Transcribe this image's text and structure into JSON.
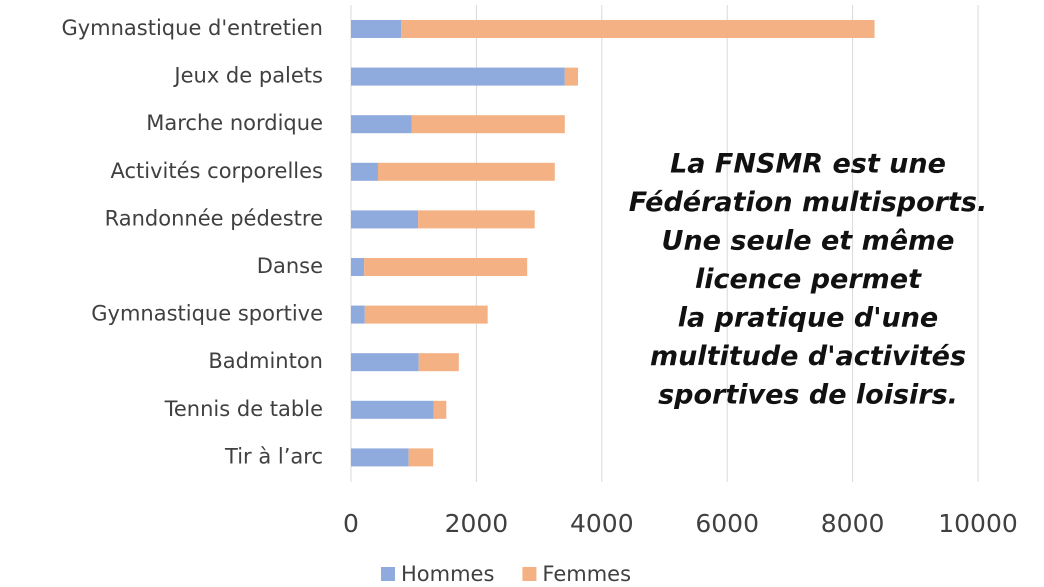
{
  "chart_data": {
    "type": "stacked-barh",
    "categories": [
      "Gymnastique d'entretien",
      "Jeux de palets",
      "Marche nordique",
      "Activités corporelles",
      "Randonnée pédestre",
      "Danse",
      "Gymnastique sportive",
      "Badminton",
      "Tennis de table",
      "Tir à l’arc"
    ],
    "series": [
      {
        "name": "Hommes",
        "color": "#8faadc",
        "values": [
          800,
          3410,
          970,
          430,
          1070,
          210,
          220,
          1080,
          1320,
          920
        ]
      },
      {
        "name": "Femmes",
        "color": "#f4b183",
        "values": [
          7550,
          210,
          2440,
          2820,
          1860,
          2600,
          1960,
          640,
          200,
          390
        ]
      }
    ],
    "xlim": [
      0,
      10000
    ],
    "xticks": [
      0,
      2000,
      4000,
      6000,
      8000,
      10000
    ],
    "grid": true,
    "legend": "bottom",
    "annotation": [
      "La FNSMR est une",
      "Fédération multisports.",
      "Une seule et même",
      "licence permet",
      "la pratique d'une",
      "multitude d'activités",
      "sportives de loisirs."
    ]
  }
}
